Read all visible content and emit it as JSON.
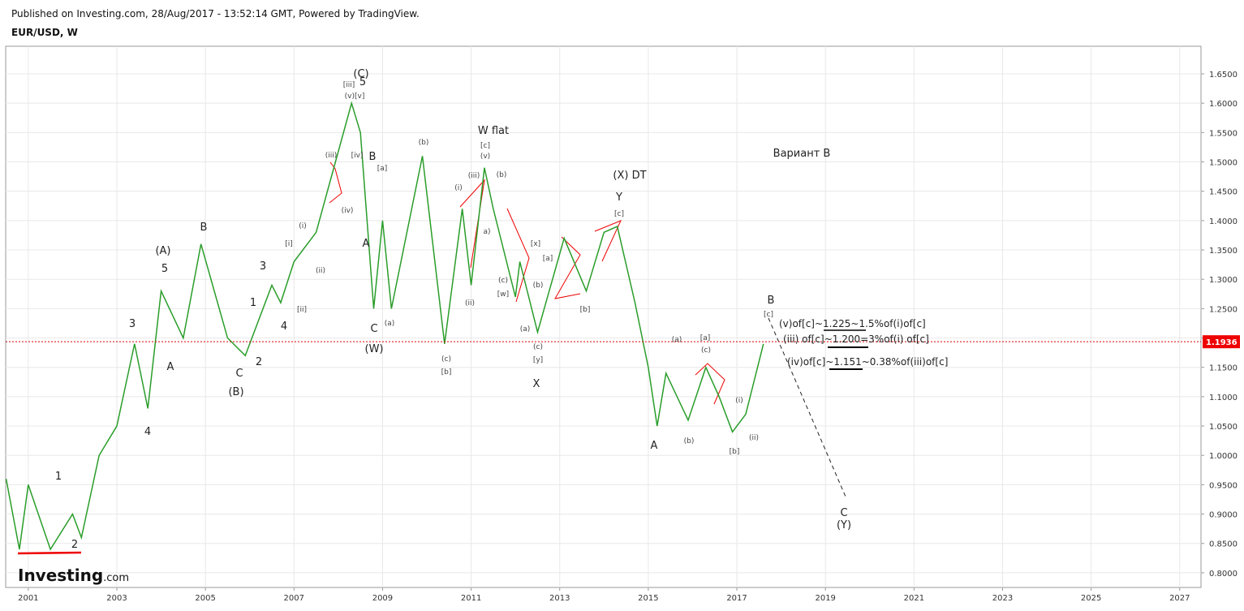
{
  "header": {
    "published": "Published on Investing.com, 28/Aug/2017 - 13:52:14 GMT, Powered by TradingView.",
    "symbol": "EUR/USD, W"
  },
  "logo": {
    "brand": "Investing",
    "suffix": ".com"
  },
  "chart_data": {
    "type": "line",
    "x": [
      2000.5,
      2000.8,
      2001.0,
      2001.5,
      2002.0,
      2002.2,
      2002.6,
      2003.0,
      2003.4,
      2003.7,
      2004.0,
      2004.5,
      2004.9,
      2005.5,
      2005.9,
      2006.5,
      2006.7,
      2007.0,
      2007.5,
      2007.9,
      2008.3,
      2008.5,
      2008.8,
      2009.0,
      2009.2,
      2009.9,
      2010.4,
      2010.8,
      2011.0,
      2011.3,
      2011.5,
      2012.0,
      2012.1,
      2012.5,
      2013.1,
      2013.6,
      2014.0,
      2014.3,
      2014.7,
      2015.0,
      2015.2,
      2015.4,
      2015.9,
      2016.3,
      2016.6,
      2016.9,
      2017.2,
      2017.6
    ],
    "series": [
      {
        "name": "EUR/USD",
        "color": "#2a9d2a",
        "values": [
          0.96,
          0.84,
          0.95,
          0.84,
          0.9,
          0.86,
          1.0,
          1.05,
          1.19,
          1.08,
          1.28,
          1.2,
          1.36,
          1.2,
          1.17,
          1.29,
          1.26,
          1.33,
          1.38,
          1.49,
          1.6,
          1.55,
          1.25,
          1.4,
          1.25,
          1.51,
          1.19,
          1.42,
          1.29,
          1.49,
          1.42,
          1.27,
          1.33,
          1.21,
          1.37,
          1.28,
          1.38,
          1.39,
          1.26,
          1.15,
          1.05,
          1.14,
          1.06,
          1.15,
          1.1,
          1.04,
          1.07,
          1.19
        ]
      }
    ],
    "last_price": 1.1936,
    "xlim": [
      2000.49,
      2027.48
    ],
    "ylim": [
      0.775,
      1.697
    ],
    "xticks": [
      2001,
      2003,
      2005,
      2007,
      2009,
      2011,
      2013,
      2015,
      2017,
      2019,
      2021,
      2023,
      2025,
      2027
    ],
    "yticks": [
      {
        "value": 0.8,
        "label": "0.8000"
      },
      {
        "value": 0.85,
        "label": "0.8500"
      },
      {
        "value": 0.9,
        "label": "0.9000"
      },
      {
        "value": 0.95,
        "label": "0.9500"
      },
      {
        "value": 1.0,
        "label": "1.0000"
      },
      {
        "value": 1.05,
        "label": "1.0500"
      },
      {
        "value": 1.1,
        "label": "1.1000"
      },
      {
        "value": 1.15,
        "label": "1.1500"
      },
      {
        "value": 1.2,
        "label": "1.2000"
      },
      {
        "value": 1.25,
        "label": "1.2500"
      },
      {
        "value": 1.3,
        "label": "1.3000"
      },
      {
        "value": 1.35,
        "label": "1.3500"
      },
      {
        "value": 1.4,
        "label": "1.4000"
      },
      {
        "value": 1.45,
        "label": "1.4500"
      },
      {
        "value": 1.5,
        "label": "1.5000"
      },
      {
        "value": 1.55,
        "label": "1.5500"
      },
      {
        "value": 1.6,
        "label": "1.6000"
      },
      {
        "value": 1.65,
        "label": "1.6500"
      }
    ],
    "grid": true,
    "annotations": [
      "1",
      "2",
      "3",
      "4",
      "5",
      "(A)",
      "A",
      "B",
      "C",
      "(B)",
      "2",
      "1",
      "3",
      "4",
      "[i]",
      "[ii]",
      "(i)",
      "(ii)",
      "(iii)",
      "(iv)",
      "[iii]",
      "(v)[v]",
      "5",
      "(C)",
      "[iv]",
      "B",
      "[a]",
      "A",
      "C",
      "(W)",
      "(a)",
      "(b)",
      "(c)",
      "[b]",
      "W flat",
      "[c]",
      "(v)",
      "(iii)",
      "(b)",
      "(i)",
      "a)",
      "(ii)",
      "[x]",
      "[a]",
      "(c)",
      "[w]",
      "(b)",
      "(a)",
      "(c)",
      "[y]",
      "X",
      "[b]",
      "(X) DT",
      "Y",
      "[c]",
      "A",
      "(a)",
      "[a]",
      "(c)",
      "(b)",
      "(i)",
      "[b]",
      "(ii)",
      "B",
      "[c]",
      "C",
      "(Y)",
      "Вариант B"
    ],
    "notes": [
      "(v)of[c]~1.225~1.5%of(i)of[c]",
      "(iii) of[c]~1.200=3%of(i) of[c]",
      "(iv)of[c]~1.151~0.38%of(iii)of[c]"
    ]
  }
}
